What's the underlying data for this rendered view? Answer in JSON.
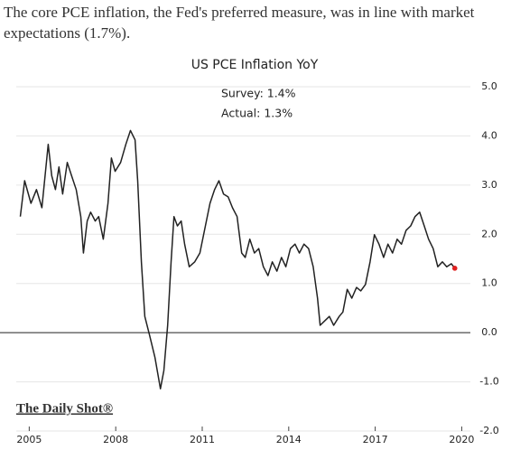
{
  "header": {
    "text": "The core PCE inflation, the Fed's preferred measure, was in line with market expectations (1.7%)."
  },
  "chart_data": {
    "type": "line",
    "title": "US PCE Inflation YoY",
    "annotations": [
      "Survey: 1.4%",
      "Actual: 1.3%"
    ],
    "source": "The Daily Shot®",
    "x": [
      2004.69,
      2004.84,
      2005.06,
      2005.25,
      2005.44,
      2005.66,
      2005.78,
      2005.91,
      2006.03,
      2006.16,
      2006.32,
      2006.47,
      2006.63,
      2006.79,
      2006.88,
      2007.01,
      2007.13,
      2007.29,
      2007.41,
      2007.57,
      2007.73,
      2007.85,
      2007.98,
      2008.17,
      2008.35,
      2008.51,
      2008.67,
      2008.76,
      2008.89,
      2009.01,
      2009.17,
      2009.36,
      2009.55,
      2009.67,
      2009.8,
      2009.92,
      2010.02,
      2010.14,
      2010.27,
      2010.39,
      2010.55,
      2010.74,
      2010.92,
      2011.11,
      2011.27,
      2011.43,
      2011.58,
      2011.74,
      2011.9,
      2012.05,
      2012.21,
      2012.37,
      2012.49,
      2012.65,
      2012.81,
      2012.96,
      2013.12,
      2013.28,
      2013.43,
      2013.59,
      2013.75,
      2013.9,
      2014.06,
      2014.22,
      2014.37,
      2014.53,
      2014.69,
      2014.85,
      2015.0,
      2015.09,
      2015.25,
      2015.41,
      2015.56,
      2015.75,
      2015.88,
      2016.03,
      2016.19,
      2016.35,
      2016.5,
      2016.66,
      2016.82,
      2016.97,
      2017.13,
      2017.29,
      2017.44,
      2017.6,
      2017.76,
      2017.91,
      2018.07,
      2018.23,
      2018.38,
      2018.54,
      2018.7,
      2018.85,
      2019.01,
      2019.17,
      2019.33,
      2019.48,
      2019.64,
      2019.76
    ],
    "series": [
      {
        "name": "US PCE Inflation YoY",
        "color": "#222222",
        "values": [
          2.36,
          3.09,
          2.63,
          2.91,
          2.54,
          3.83,
          3.19,
          2.91,
          3.37,
          2.82,
          3.46,
          3.19,
          2.91,
          2.36,
          1.62,
          2.27,
          2.45,
          2.27,
          2.36,
          1.9,
          2.63,
          3.55,
          3.28,
          3.46,
          3.83,
          4.11,
          3.92,
          3.09,
          1.44,
          0.33,
          -0.04,
          -0.5,
          -1.14,
          -0.77,
          0.15,
          1.44,
          2.36,
          2.17,
          2.27,
          1.8,
          1.34,
          1.44,
          1.62,
          2.17,
          2.63,
          2.91,
          3.09,
          2.82,
          2.76,
          2.54,
          2.36,
          1.62,
          1.53,
          1.9,
          1.62,
          1.71,
          1.34,
          1.16,
          1.44,
          1.25,
          1.53,
          1.34,
          1.71,
          1.8,
          1.62,
          1.8,
          1.71,
          1.34,
          0.7,
          0.15,
          0.24,
          0.33,
          0.15,
          0.33,
          0.42,
          0.88,
          0.7,
          0.92,
          0.85,
          0.98,
          1.44,
          1.99,
          1.8,
          1.53,
          1.8,
          1.62,
          1.9,
          1.8,
          2.08,
          2.17,
          2.36,
          2.45,
          2.17,
          1.9,
          1.71,
          1.34,
          1.44,
          1.34,
          1.4,
          1.31
        ]
      }
    ],
    "highlight_color": "#e02020",
    "xlim": [
      2004.55,
      2020.3
    ],
    "xticks": [
      2005,
      2008,
      2011,
      2014,
      2017,
      2020
    ],
    "ylim": [
      -2.0,
      5.0
    ],
    "yticks": [
      {
        "value": -2,
        "label": "-2.0"
      },
      {
        "value": -1,
        "label": "-1.0"
      },
      {
        "value": 0,
        "label": "0.0"
      },
      {
        "value": 1,
        "label": "1.0"
      },
      {
        "value": 2,
        "label": "2.0"
      },
      {
        "value": 3,
        "label": "3.0"
      },
      {
        "value": 4,
        "label": "4.0"
      },
      {
        "value": 5,
        "label": "5.0"
      }
    ],
    "grid": true
  }
}
